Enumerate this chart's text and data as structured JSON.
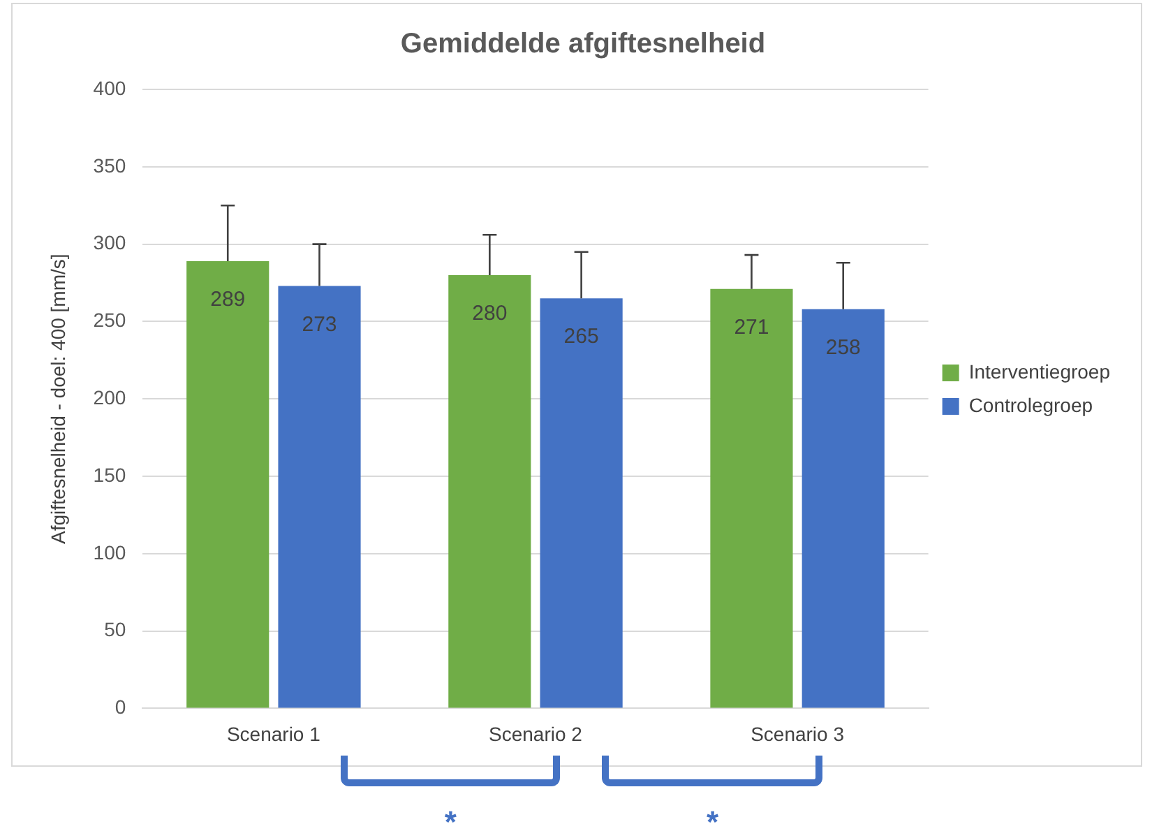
{
  "chart_data": {
    "type": "bar",
    "title": "Gemiddelde afgiftesnelheid",
    "ylabel": "Afgiftesnelheid - doel: 400 [mm/s]",
    "categories": [
      "Scenario 1",
      "Scenario 2",
      "Scenario 3"
    ],
    "series": [
      {
        "name": "Interventiegroep",
        "color": "#70ad47",
        "values": [
          289,
          280,
          271
        ],
        "errors": [
          [
            289,
            325
          ],
          [
            280,
            306
          ],
          [
            271,
            293
          ]
        ]
      },
      {
        "name": "Controlegroep",
        "color": "#4472c4",
        "values": [
          273,
          265,
          258
        ],
        "errors": [
          [
            273,
            300
          ],
          [
            265,
            295
          ],
          [
            258,
            288
          ]
        ]
      }
    ],
    "ylim": [
      0,
      400
    ],
    "yticks": [
      0,
      50,
      100,
      150,
      200,
      250,
      300,
      350,
      400
    ],
    "grid": "y",
    "legend": "right",
    "data_labels": true,
    "annotations": [
      "*",
      "*"
    ]
  }
}
